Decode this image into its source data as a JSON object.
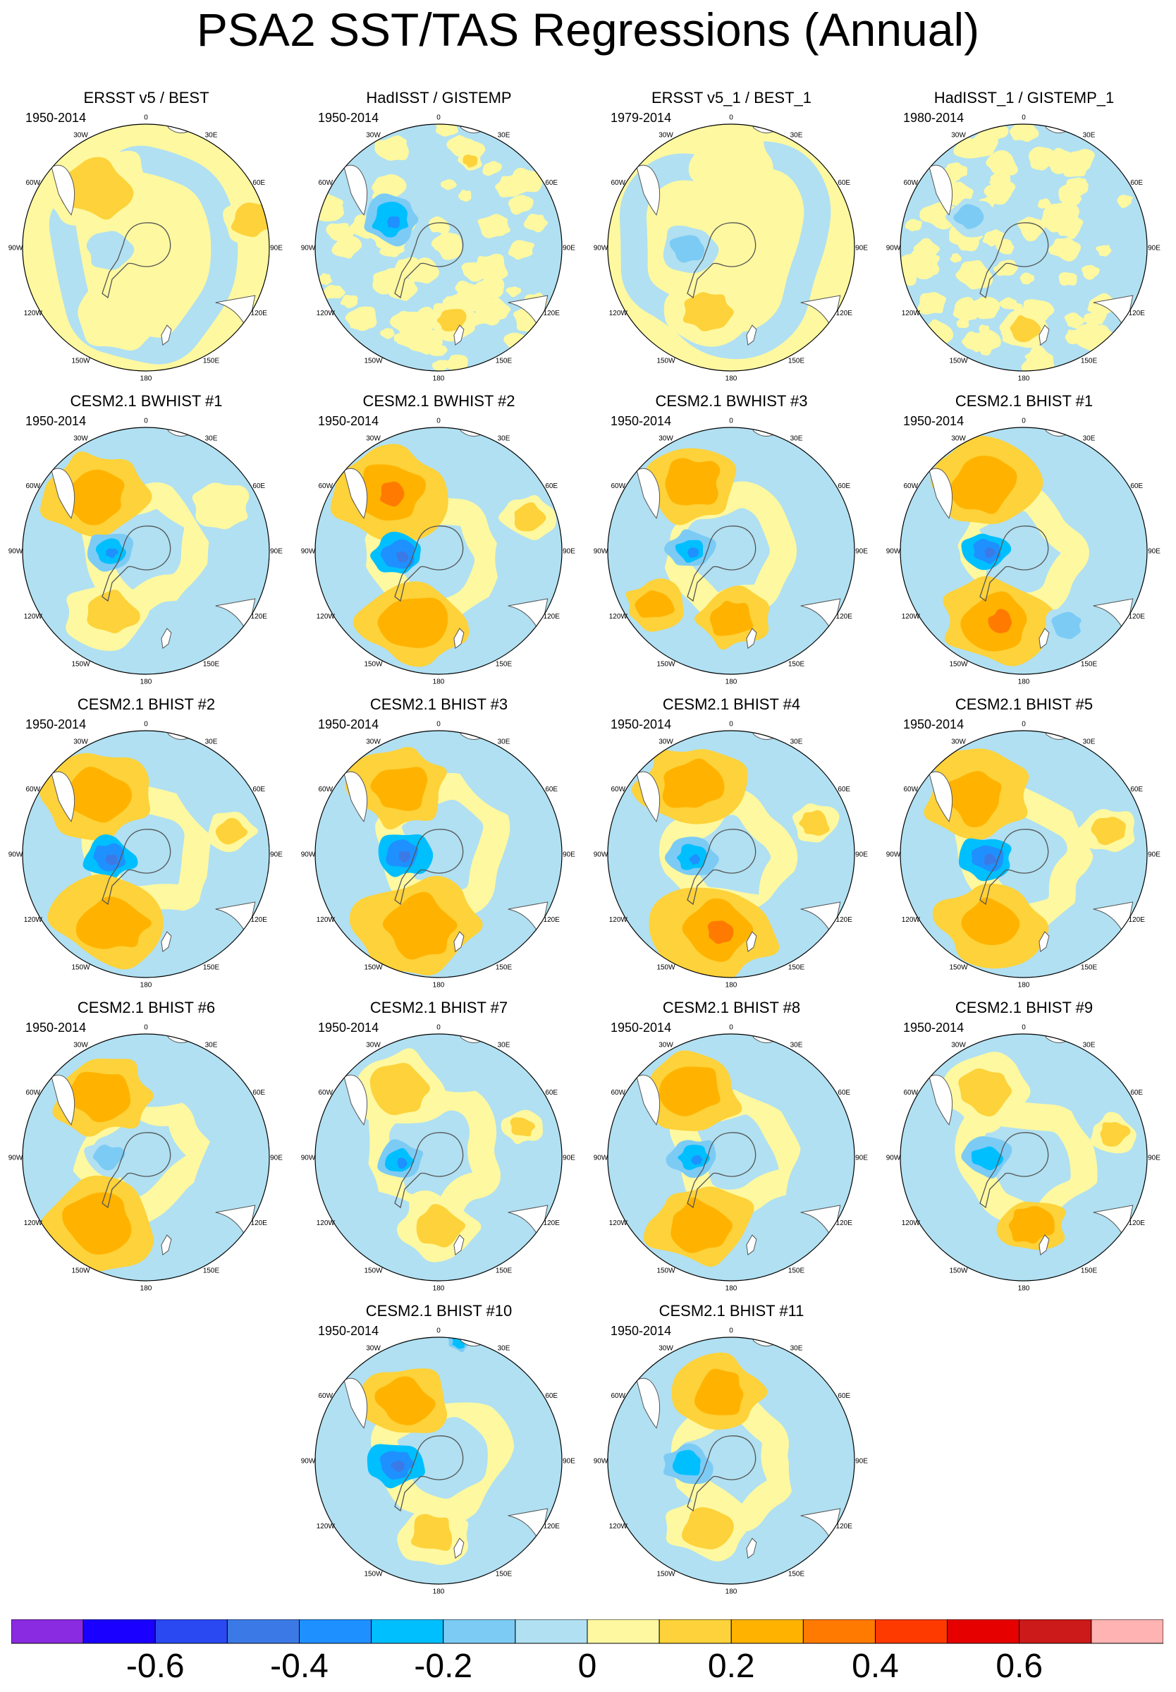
{
  "title": "PSA2 SST/TAS Regressions (Annual)",
  "longitude_labels": [
    "0",
    "30E",
    "60E",
    "90E",
    "120E",
    "150E",
    "180",
    "150W",
    "120W",
    "90W",
    "60W",
    "30W"
  ],
  "chart_data": {
    "type": "heatmap",
    "projection": "south-polar-stereographic",
    "colorbar": {
      "colors": [
        "#8a2be2",
        "#1a00ff",
        "#2b49f2",
        "#3b7ae6",
        "#1e90ff",
        "#00bfff",
        "#7ccbf5",
        "#b0e0f2",
        "#fef8a0",
        "#fdd23a",
        "#ffb300",
        "#ff7a00",
        "#ff3a00",
        "#e60000",
        "#cc1a1a",
        "#ffb3b3"
      ],
      "boundaries": [
        -0.7,
        -0.6,
        -0.5,
        -0.4,
        -0.3,
        -0.2,
        -0.1,
        0,
        0.1,
        0.2,
        0.3,
        0.4,
        0.5,
        0.6,
        0.7
      ],
      "tick_labels": [
        "-0.6",
        "-0.4",
        "-0.2",
        "0",
        "0.2",
        "0.4",
        "0.6"
      ],
      "tick_values": [
        -0.6,
        -0.4,
        -0.2,
        0,
        0.2,
        0.4,
        0.6
      ]
    },
    "panels": [
      {
        "title": "ERSST v5 / BEST",
        "period": "1950-2014",
        "kind": "obs_broad",
        "features": [
          {
            "lon": 320,
            "r": 0.6,
            "size": 0.28,
            "value": 0.18
          },
          {
            "lon": 75,
            "r": 0.88,
            "size": 0.16,
            "value": 0.18
          },
          {
            "lon": 200,
            "r": 0.55,
            "size": 0.25,
            "value": 0.05
          },
          {
            "lon": 270,
            "r": 0.3,
            "size": 0.12,
            "value": -0.05
          }
        ]
      },
      {
        "title": "HadISST / GISTEMP",
        "period": "1950-2014",
        "kind": "obs_noisy",
        "features": [
          {
            "lon": 300,
            "r": 0.45,
            "size": 0.15,
            "value": -0.25
          },
          {
            "lon": 170,
            "r": 0.6,
            "size": 0.12,
            "value": 0.15
          },
          {
            "lon": 20,
            "r": 0.75,
            "size": 0.06,
            "value": 0.18
          }
        ]
      },
      {
        "title": "ERSST v5_1 / BEST_1",
        "period": "1979-2014",
        "kind": "obs_broad",
        "features": [
          {
            "lon": 270,
            "r": 0.35,
            "size": 0.14,
            "value": -0.2
          },
          {
            "lon": 200,
            "r": 0.55,
            "size": 0.2,
            "value": 0.15
          },
          {
            "lon": 0,
            "r": 0.7,
            "size": 0.22,
            "value": 0.05
          }
        ]
      },
      {
        "title": "HadISST_1 / GISTEMP_1",
        "period": "1980-2014",
        "kind": "obs_noisy",
        "features": [
          {
            "lon": 180,
            "r": 0.65,
            "size": 0.12,
            "value": 0.15
          },
          {
            "lon": 300,
            "r": 0.5,
            "size": 0.12,
            "value": -0.12
          }
        ]
      },
      {
        "title": "CESM2.1 BWHIST #1",
        "period": "1950-2014",
        "kind": "model",
        "features": [
          {
            "lon": 315,
            "r": 0.62,
            "size": 0.26,
            "value": 0.22
          },
          {
            "lon": 270,
            "r": 0.3,
            "size": 0.12,
            "value": -0.3
          },
          {
            "lon": 210,
            "r": 0.58,
            "size": 0.22,
            "value": 0.18
          },
          {
            "lon": 60,
            "r": 0.7,
            "size": 0.15,
            "value": 0.08
          }
        ]
      },
      {
        "title": "CESM2.1 BWHIST #2",
        "period": "1950-2014",
        "kind": "model",
        "features": [
          {
            "lon": 320,
            "r": 0.62,
            "size": 0.28,
            "value": 0.26
          },
          {
            "lon": 265,
            "r": 0.32,
            "size": 0.13,
            "value": -0.34
          },
          {
            "lon": 200,
            "r": 0.6,
            "size": 0.26,
            "value": 0.2
          },
          {
            "lon": 70,
            "r": 0.78,
            "size": 0.14,
            "value": 0.12
          }
        ]
      },
      {
        "title": "CESM2.1 BWHIST #3",
        "period": "1950-2014",
        "kind": "model",
        "features": [
          {
            "lon": 330,
            "r": 0.64,
            "size": 0.24,
            "value": 0.2
          },
          {
            "lon": 270,
            "r": 0.33,
            "size": 0.12,
            "value": -0.28
          },
          {
            "lon": 235,
            "r": 0.75,
            "size": 0.15,
            "value": 0.2
          },
          {
            "lon": 180,
            "r": 0.55,
            "size": 0.18,
            "value": 0.22
          }
        ]
      },
      {
        "title": "CESM2.1 BHIST #1",
        "period": "1950-2014",
        "kind": "model",
        "features": [
          {
            "lon": 330,
            "r": 0.62,
            "size": 0.26,
            "value": 0.22
          },
          {
            "lon": 270,
            "r": 0.3,
            "size": 0.12,
            "value": -0.34
          },
          {
            "lon": 200,
            "r": 0.6,
            "size": 0.28,
            "value": 0.26
          },
          {
            "lon": 150,
            "r": 0.7,
            "size": 0.12,
            "value": -0.18
          }
        ]
      },
      {
        "title": "CESM2.1 BHIST #2",
        "period": "1950-2014",
        "kind": "model",
        "features": [
          {
            "lon": 320,
            "r": 0.62,
            "size": 0.26,
            "value": 0.24
          },
          {
            "lon": 265,
            "r": 0.3,
            "size": 0.13,
            "value": -0.32
          },
          {
            "lon": 205,
            "r": 0.62,
            "size": 0.28,
            "value": 0.2
          },
          {
            "lon": 75,
            "r": 0.72,
            "size": 0.12,
            "value": 0.12
          }
        ]
      },
      {
        "title": "CESM2.1 BHIST #3",
        "period": "1950-2014",
        "kind": "model",
        "features": [
          {
            "lon": 330,
            "r": 0.62,
            "size": 0.24,
            "value": 0.24
          },
          {
            "lon": 270,
            "r": 0.3,
            "size": 0.14,
            "value": -0.36
          },
          {
            "lon": 195,
            "r": 0.6,
            "size": 0.3,
            "value": 0.24
          }
        ]
      },
      {
        "title": "CESM2.1 BHIST #4",
        "period": "1950-2014",
        "kind": "model",
        "features": [
          {
            "lon": 330,
            "r": 0.64,
            "size": 0.26,
            "value": 0.2
          },
          {
            "lon": 265,
            "r": 0.32,
            "size": 0.12,
            "value": -0.26
          },
          {
            "lon": 190,
            "r": 0.62,
            "size": 0.3,
            "value": 0.26
          },
          {
            "lon": 70,
            "r": 0.72,
            "size": 0.12,
            "value": 0.12
          }
        ]
      },
      {
        "title": "CESM2.1 BHIST #5",
        "period": "1950-2014",
        "kind": "model",
        "features": [
          {
            "lon": 320,
            "r": 0.62,
            "size": 0.26,
            "value": 0.24
          },
          {
            "lon": 265,
            "r": 0.3,
            "size": 0.13,
            "value": -0.34
          },
          {
            "lon": 205,
            "r": 0.62,
            "size": 0.26,
            "value": 0.2
          },
          {
            "lon": 75,
            "r": 0.72,
            "size": 0.14,
            "value": 0.16
          }
        ]
      },
      {
        "title": "CESM2.1 BHIST #6",
        "period": "1950-2014",
        "kind": "model",
        "features": [
          {
            "lon": 325,
            "r": 0.62,
            "size": 0.24,
            "value": 0.2
          },
          {
            "lon": 270,
            "r": 0.3,
            "size": 0.12,
            "value": -0.18
          },
          {
            "lon": 215,
            "r": 0.65,
            "size": 0.28,
            "value": 0.22
          }
        ]
      },
      {
        "title": "CESM2.1 BHIST #7",
        "period": "1950-2014",
        "kind": "model",
        "features": [
          {
            "lon": 330,
            "r": 0.64,
            "size": 0.24,
            "value": 0.18
          },
          {
            "lon": 265,
            "r": 0.32,
            "size": 0.12,
            "value": -0.26
          },
          {
            "lon": 180,
            "r": 0.55,
            "size": 0.2,
            "value": 0.18
          },
          {
            "lon": 70,
            "r": 0.72,
            "size": 0.1,
            "value": 0.12
          }
        ]
      },
      {
        "title": "CESM2.1 BHIST #8",
        "period": "1950-2014",
        "kind": "model",
        "features": [
          {
            "lon": 330,
            "r": 0.62,
            "size": 0.24,
            "value": 0.2
          },
          {
            "lon": 270,
            "r": 0.3,
            "size": 0.12,
            "value": -0.26
          },
          {
            "lon": 205,
            "r": 0.6,
            "size": 0.26,
            "value": 0.2
          }
        ]
      },
      {
        "title": "CESM2.1 BHIST #9",
        "period": "1950-2014",
        "kind": "model",
        "features": [
          {
            "lon": 330,
            "r": 0.62,
            "size": 0.22,
            "value": 0.16
          },
          {
            "lon": 270,
            "r": 0.3,
            "size": 0.12,
            "value": -0.24
          },
          {
            "lon": 175,
            "r": 0.55,
            "size": 0.18,
            "value": 0.2
          },
          {
            "lon": 75,
            "r": 0.75,
            "size": 0.12,
            "value": 0.14
          }
        ]
      },
      {
        "title": "CESM2.1 BHIST #10",
        "period": "1950-2014",
        "kind": "model",
        "features": [
          {
            "lon": 330,
            "r": 0.55,
            "size": 0.22,
            "value": 0.22
          },
          {
            "lon": 265,
            "r": 0.35,
            "size": 0.14,
            "value": -0.32
          },
          {
            "lon": 185,
            "r": 0.6,
            "size": 0.18,
            "value": 0.14
          },
          {
            "lon": 10,
            "r": 0.98,
            "size": 0.06,
            "value": -0.22
          }
        ]
      },
      {
        "title": "CESM2.1 BHIST #11",
        "period": "1950-2014",
        "kind": "model",
        "features": [
          {
            "lon": 350,
            "r": 0.55,
            "size": 0.22,
            "value": 0.2
          },
          {
            "lon": 265,
            "r": 0.35,
            "size": 0.12,
            "value": -0.24
          },
          {
            "lon": 200,
            "r": 0.58,
            "size": 0.2,
            "value": 0.18
          }
        ]
      }
    ]
  }
}
